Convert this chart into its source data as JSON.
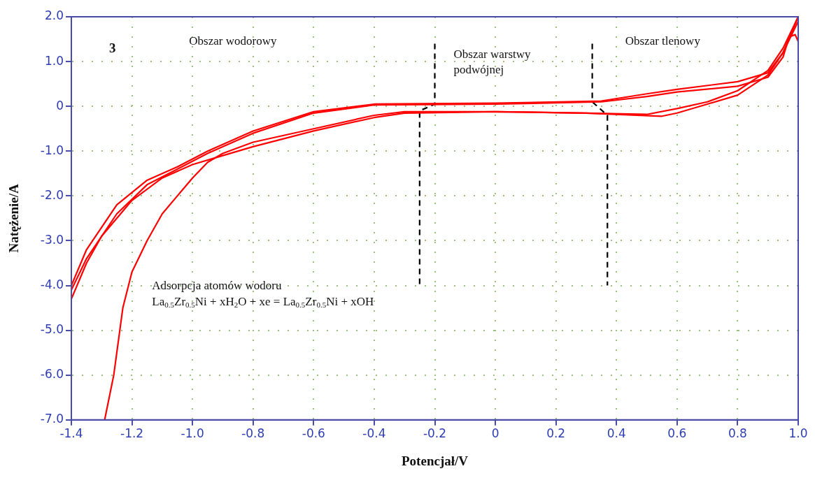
{
  "chart_data": {
    "type": "line",
    "xlabel": "Potencjał/V",
    "ylabel": "Natężenie/A",
    "xlim": [
      -1.4,
      1.0
    ],
    "ylim": [
      -7.0,
      2.0
    ],
    "xticks": [
      -1.4,
      -1.2,
      {
        "value": -1,
        "label": "-1.0"
      },
      -0.8,
      -0.6,
      -0.4,
      -0.2,
      0,
      0.2,
      0.4,
      0.6,
      0.8,
      {
        "value": 1,
        "label": "1.0"
      }
    ],
    "yticks": [
      {
        "value": 2,
        "label": "2.0"
      },
      {
        "value": 1,
        "label": "1.0"
      },
      0,
      {
        "value": -1,
        "label": "-1.0"
      },
      {
        "value": -2,
        "label": "-2.0"
      },
      {
        "value": -3,
        "label": "-3.0"
      },
      {
        "value": -4,
        "label": "-4.0"
      },
      {
        "value": -5,
        "label": "-5.0"
      },
      {
        "value": -6,
        "label": "-6.0"
      },
      {
        "value": -7,
        "label": "-7.0"
      }
    ],
    "grid": true,
    "legend": false,
    "marker": "none",
    "line_style": "solid",
    "series": [
      {
        "color": "#ff0000",
        "x": [
          -1.29,
          -1.26,
          -1.24,
          -1.23,
          -1.2,
          -1.15,
          -1.1,
          -1.0,
          -0.95,
          -0.9,
          -0.8,
          -0.6,
          -0.4,
          -0.3,
          0,
          0.3,
          0.5,
          0.6,
          0.7,
          0.8,
          0.9,
          0.95,
          1.0
        ],
        "values": [
          -7.0,
          -6.0,
          -5.0,
          -4.5,
          -3.7,
          -3.0,
          -2.4,
          -1.6,
          -1.25,
          -1.05,
          -0.8,
          -0.5,
          -0.2,
          -0.12,
          -0.12,
          -0.15,
          -0.18,
          -0.05,
          0.1,
          0.35,
          0.8,
          1.3,
          2.0
        ]
      },
      {
        "color": "#ff0000",
        "x": [
          1.0,
          0.95,
          0.9,
          0.8,
          0.6,
          0.5,
          0.35,
          0,
          -0.4,
          -0.6,
          -0.8,
          -0.95,
          -1.05,
          -1.15,
          -1.25,
          -1.35,
          -1.4
        ],
        "values": [
          2.0,
          1.2,
          0.75,
          0.55,
          0.38,
          0.28,
          0.12,
          0.07,
          0.05,
          -0.12,
          -0.55,
          -1.0,
          -1.35,
          -1.65,
          -2.2,
          -3.2,
          -4.0
        ]
      },
      {
        "color": "#ff0000",
        "x": [
          -1.4,
          -1.35,
          -1.3,
          -1.2,
          -1.1,
          -1.0,
          -0.9,
          -0.8,
          -0.6,
          -0.4,
          -0.3,
          0,
          0.3,
          0.55,
          0.6,
          0.7,
          0.8,
          0.9,
          0.95,
          1.0
        ],
        "values": [
          -4.3,
          -3.5,
          -2.9,
          -2.1,
          -1.6,
          -1.3,
          -1.1,
          -0.9,
          -0.55,
          -0.25,
          -0.15,
          -0.12,
          -0.15,
          -0.22,
          -0.15,
          0.05,
          0.25,
          0.7,
          1.2,
          1.9
        ]
      },
      {
        "color": "#ff0000",
        "x": [
          1.0,
          0.99,
          0.97,
          0.95,
          0.9,
          0.8,
          0.6,
          0.5,
          0.35,
          0,
          -0.4,
          -0.6,
          -0.8,
          -0.95,
          -1.05,
          -1.15,
          -1.25,
          -1.35,
          -1.4
        ],
        "values": [
          1.45,
          1.6,
          1.55,
          1.1,
          0.65,
          0.45,
          0.32,
          0.22,
          0.1,
          0.05,
          0.03,
          -0.15,
          -0.6,
          -1.05,
          -1.4,
          -1.75,
          -2.4,
          -3.4,
          -4.1
        ]
      },
      {
        "color": "#000000",
        "line_style": "dashed",
        "x": [
          -0.2,
          -0.2,
          -0.25,
          -0.25
        ],
        "values": [
          1.4,
          0.05,
          -0.1,
          -4.0
        ]
      },
      {
        "color": "#000000",
        "line_style": "dashed",
        "x": [
          0.32,
          0.32,
          0.37,
          0.37
        ],
        "values": [
          1.4,
          0.1,
          -0.2,
          -4.0
        ]
      }
    ],
    "annotations": [
      "3",
      "Obszar wodorowy",
      "Obszar warstwy podwójnej",
      "Obszar tlenowy",
      "Adsorpcja atomów wodoru",
      "La$_{0.5}$Zr$_{0.5}$Ni + xH$_{2}$O + xe = La$_{0.5}$Zr$_{0.5}$Ni + xOH"
    ]
  }
}
